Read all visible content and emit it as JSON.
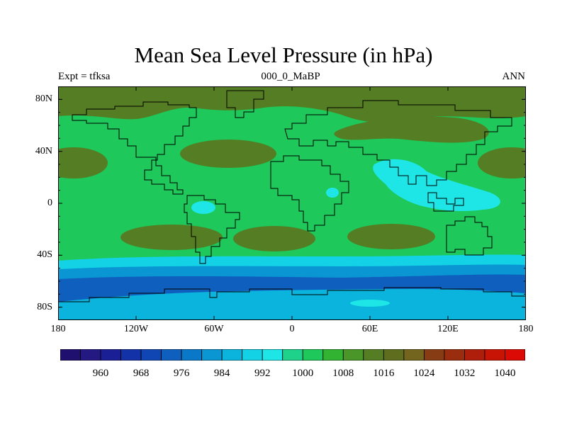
{
  "map": {
    "title": "Mean Sea Level Pressure (in hPa)",
    "left_string": "Expt = tfksa",
    "center_string": "000_0_MaBP",
    "right_string": "ANN",
    "variable": "Mean Sea Level Pressure",
    "units": "hPa",
    "lon_range": [
      -180,
      180
    ],
    "lat_range": [
      -90,
      90
    ],
    "lat_ticks": [
      {
        "value": 80,
        "label": "80N"
      },
      {
        "value": 40,
        "label": "40N"
      },
      {
        "value": 0,
        "label": "0"
      },
      {
        "value": -40,
        "label": "40S"
      },
      {
        "value": -80,
        "label": "80S"
      }
    ],
    "lon_ticks": [
      {
        "value": -180,
        "label": "180"
      },
      {
        "value": -120,
        "label": "120W"
      },
      {
        "value": -60,
        "label": "60W"
      },
      {
        "value": 0,
        "label": "0"
      },
      {
        "value": 60,
        "label": "60E"
      },
      {
        "value": 120,
        "label": "120E"
      },
      {
        "value": 180,
        "label": "180"
      }
    ],
    "colorbar": {
      "levels": [
        956,
        960,
        964,
        968,
        972,
        976,
        980,
        984,
        988,
        992,
        996,
        1000,
        1004,
        1008,
        1012,
        1016,
        1020,
        1024,
        1028,
        1032,
        1036,
        1040
      ],
      "labels": [
        "960",
        "968",
        "976",
        "984",
        "992",
        "1000",
        "1008",
        "1016",
        "1024",
        "1032",
        "1040"
      ],
      "colors": [
        "#1f0f6e",
        "#241882",
        "#1a1f96",
        "#1432a8",
        "#0f46b4",
        "#0f5fbe",
        "#0a78c8",
        "#0a96d2",
        "#0ab4dc",
        "#14d2e6",
        "#1ee6e6",
        "#1ed28c",
        "#1ec85a",
        "#32b432",
        "#4b9628",
        "#557d23",
        "#5f6e1e",
        "#73641e",
        "#873c14",
        "#9b2d0f",
        "#af1e0a",
        "#c81405",
        "#dc0a05"
      ]
    },
    "fields": {
      "background": "#1ec85a",
      "subpolar_north": "#557d23",
      "subtropical_highs": "#557d23",
      "warm_pool": "#1ee6e6",
      "antarctic_trough": "#0f5fbe",
      "southern_ocean_band": "#0a96d2",
      "southern_ocean_light": "#14d2e6",
      "antarctica": "#0ab4dc",
      "ice_edge": "#1ee6e6"
    }
  }
}
